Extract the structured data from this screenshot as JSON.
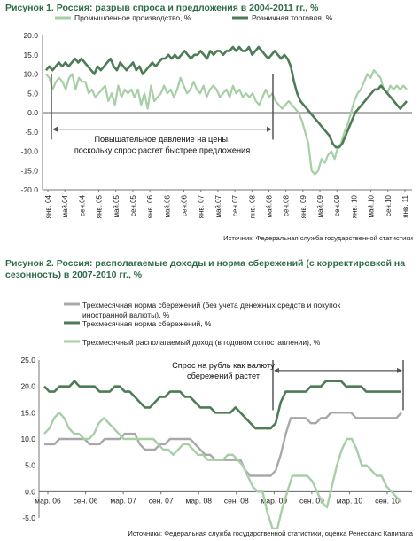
{
  "chart_data": [
    {
      "type": "line",
      "title": "Рисунок 1. Россия: разрыв спроса и предложения в 2004-2011 гг., %",
      "source": "Источник: Федеральная служба государственной статистики",
      "ylim": [
        -20,
        20
      ],
      "yticks": [
        "20.0",
        "15.0",
        "10.0",
        "5.0",
        "0.0",
        "-5.0",
        "-10.0",
        "-15.0",
        "-20.0"
      ],
      "xticks": [
        "янв. 04",
        "май.04",
        "сен.04",
        "янв. 05",
        "май.05",
        "сен.05",
        "янв. 06",
        "май.06",
        "сен.06",
        "янв. 07",
        "май.07",
        "сен.07",
        "янв. 08",
        "май.08",
        "сен.08",
        "янв. 09",
        "май.09",
        "сен.09",
        "янв. 10",
        "май.10",
        "сен.10",
        "янв. 11"
      ],
      "annotation": [
        "Повышательное давление на цены,",
        "поскольку спрос растет быстрее предложения"
      ],
      "series": [
        {
          "name": "Промышленное производство, %",
          "color": "#a7cfa6",
          "values": [
            10,
            9,
            6,
            8,
            9,
            8,
            6,
            9,
            10,
            6,
            9,
            8,
            8,
            5,
            6,
            4,
            5,
            6,
            7,
            3,
            5,
            2,
            7,
            4,
            6,
            5,
            6,
            4,
            6,
            2,
            5,
            1,
            7,
            3,
            4,
            5,
            7,
            5,
            6,
            4,
            6,
            9,
            7,
            5,
            6,
            8,
            6,
            5,
            7,
            4,
            6,
            7,
            6,
            4,
            5,
            6,
            4,
            7,
            5,
            6,
            4,
            5,
            4,
            5,
            3,
            2,
            4,
            6,
            4,
            5,
            3,
            2,
            1,
            2,
            3,
            2,
            1,
            0,
            -2,
            -5,
            -8,
            -15,
            -16,
            -15,
            -12,
            -13,
            -11,
            -10,
            -12,
            -9,
            -8,
            -5,
            -3,
            0,
            3,
            5,
            6,
            8,
            10,
            9,
            11,
            10,
            9,
            6,
            5,
            7,
            6,
            7,
            6,
            7,
            6
          ]
        },
        {
          "name": "Розничная торговля, %",
          "color": "#4d7c57",
          "values": [
            11,
            12,
            11,
            12,
            13,
            12,
            13,
            12,
            13,
            14,
            13,
            14,
            13,
            12,
            11,
            10,
            12,
            11,
            12,
            13,
            14,
            12,
            11,
            13,
            12,
            11,
            12,
            13,
            11,
            12,
            10,
            11,
            12,
            13,
            12,
            13,
            14,
            14,
            15,
            14,
            15,
            14,
            15,
            16,
            15,
            14,
            15,
            15,
            16,
            15,
            14,
            16,
            15,
            16,
            16,
            15,
            16,
            16,
            17,
            16,
            17,
            16,
            16,
            17,
            15,
            16,
            17,
            16,
            15,
            14,
            15,
            16,
            15,
            14,
            15,
            14,
            12,
            8,
            5,
            3,
            2,
            1,
            0,
            -1,
            -2,
            -3,
            -4,
            -5,
            -6,
            -8,
            -9,
            -9,
            -8,
            -6,
            -4,
            -2,
            0,
            1,
            2,
            3,
            4,
            5,
            6,
            6,
            7,
            6,
            5,
            4,
            3,
            2,
            1,
            2,
            3
          ]
        }
      ]
    },
    {
      "type": "line",
      "title": "Рисунок 2. Россия: располагаемые доходы и норма сбережений (с корректировкой на сезонность) в 2007-2010 гг., %",
      "source": "Источники: Федеральная служба государственной статистики, оценка Ренессанс Капитала",
      "ylim": [
        -5,
        25
      ],
      "yticks": [
        "25.0",
        "20.0",
        "15.0",
        "10.0",
        "5.0",
        "0.0",
        "-5.0"
      ],
      "xticks": [
        "мар. 06",
        "сен. 06",
        "мар. 07",
        "сен. 07",
        "мар. 08",
        "сен. 08",
        "мар. 09",
        "сен. 09",
        "мар. 10",
        "сен. 10"
      ],
      "annotation": [
        "Спрос на рубль как валюту",
        "сбережений растет"
      ],
      "series": [
        {
          "name": "Трехмесячная норма сбережений (без учета денежных средств и покупок иностранной валюты), %",
          "color": "#a8a8a8",
          "values": [
            9,
            9,
            9,
            10,
            10,
            10,
            10,
            10,
            10,
            9,
            9,
            9,
            10,
            10,
            10,
            10,
            11,
            11,
            11,
            9,
            8,
            8,
            8,
            9,
            9,
            10,
            10,
            10,
            10,
            10,
            9,
            8,
            7,
            7,
            6,
            6,
            6,
            6,
            6,
            6,
            4,
            3,
            3,
            3,
            3,
            3,
            4,
            7,
            11,
            14,
            14,
            14,
            14,
            13,
            13,
            14,
            14,
            15,
            15,
            15,
            15,
            15,
            14,
            14,
            14,
            14,
            14,
            14,
            14,
            14,
            14,
            15
          ]
        },
        {
          "name": "Трехмесячная норма сбережений, %",
          "color": "#4d7c57",
          "values": [
            20,
            19,
            19,
            20,
            20,
            20,
            21,
            20,
            20,
            20,
            20,
            19,
            19,
            19,
            20,
            20,
            19,
            19,
            18,
            17,
            16,
            16,
            17,
            18,
            18,
            19,
            19,
            19,
            18,
            18,
            17,
            16,
            16,
            16,
            15,
            15,
            15,
            15,
            16,
            15,
            14,
            13,
            12,
            12,
            12,
            12,
            13,
            17,
            19,
            19,
            19,
            19,
            19,
            20,
            20,
            20,
            21,
            21,
            21,
            21,
            20,
            20,
            20,
            20,
            19,
            19,
            19,
            19,
            19,
            19,
            19,
            19
          ]
        },
        {
          "name": "Трехмесячный располагаемый доход (в годовом сопоставлении), %",
          "color": "#a7cfa6",
          "values": [
            11,
            12,
            14,
            15,
            14,
            12,
            11,
            11,
            10,
            10,
            11,
            13,
            14,
            13,
            12,
            11,
            10,
            10,
            10,
            10,
            10,
            10,
            10,
            9,
            8,
            8,
            7,
            8,
            9,
            9,
            8,
            7,
            7,
            6,
            6,
            6,
            6,
            7,
            7,
            6,
            5,
            3,
            1,
            0,
            0,
            -4,
            -7,
            -7,
            -3,
            0,
            3,
            3,
            3,
            3,
            2,
            0,
            -2,
            -3,
            1,
            5,
            8,
            10,
            10,
            8,
            5,
            5,
            4,
            3,
            3,
            1,
            0,
            -1,
            -2
          ]
        }
      ]
    }
  ]
}
